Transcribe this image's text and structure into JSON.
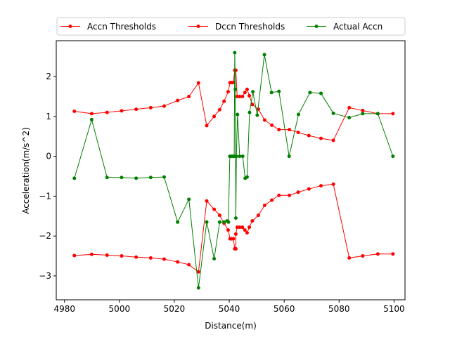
{
  "chart_data": {
    "type": "line",
    "xlabel": "Distance(m)",
    "ylabel": "Acceleration(m/s^2)",
    "xlim": [
      4977,
      5104
    ],
    "ylim": [
      -3.6,
      2.9
    ],
    "xticks": [
      4980,
      5000,
      5020,
      5040,
      5060,
      5080,
      5100
    ],
    "yticks": [
      -3,
      -2,
      -1,
      0,
      1,
      2
    ],
    "grid": false,
    "legend_position": "top",
    "series": [
      {
        "name": "Accn Thresholds",
        "color": "#ff0000",
        "points": [
          [
            4983.6,
            1.13
          ],
          [
            4989.9,
            1.07
          ],
          [
            4995.5,
            1.1
          ],
          [
            5000.8,
            1.14
          ],
          [
            5006.1,
            1.18
          ],
          [
            5011.4,
            1.22
          ],
          [
            5016.3,
            1.26
          ],
          [
            5021.2,
            1.4
          ],
          [
            5025.3,
            1.5
          ],
          [
            5028.8,
            1.84
          ],
          [
            5031.8,
            0.77
          ],
          [
            5034.5,
            1.0
          ],
          [
            5036.5,
            1.17
          ],
          [
            5038.1,
            1.38
          ],
          [
            5039.6,
            1.62
          ],
          [
            5040.3,
            1.85
          ],
          [
            5040.9,
            1.85
          ],
          [
            5041.5,
            1.85
          ],
          [
            5042.0,
            2.16
          ],
          [
            5042.4,
            2.16
          ],
          [
            5042.9,
            1.5
          ],
          [
            5043.8,
            1.5
          ],
          [
            5044.8,
            1.5
          ],
          [
            5045.7,
            1.6
          ],
          [
            5046.5,
            1.68
          ],
          [
            5047.3,
            1.52
          ],
          [
            5048.4,
            1.3
          ],
          [
            5050.6,
            1.18
          ],
          [
            5052.9,
            0.91
          ],
          [
            5055.5,
            0.78
          ],
          [
            5058.1,
            0.67
          ],
          [
            5061.9,
            0.67
          ],
          [
            5065.1,
            0.6
          ],
          [
            5069.0,
            0.52
          ],
          [
            5073.4,
            0.45
          ],
          [
            5077.9,
            0.4
          ],
          [
            5083.7,
            1.22
          ],
          [
            5088.6,
            1.15
          ],
          [
            5094.1,
            1.07
          ],
          [
            5099.6,
            1.07
          ]
        ]
      },
      {
        "name": "Dccn Thresholds",
        "color": "#ff0000",
        "points": [
          [
            4983.6,
            -2.49
          ],
          [
            4989.9,
            -2.46
          ],
          [
            4995.5,
            -2.48
          ],
          [
            5000.8,
            -2.5
          ],
          [
            5006.1,
            -2.53
          ],
          [
            5011.4,
            -2.55
          ],
          [
            5016.3,
            -2.58
          ],
          [
            5021.2,
            -2.65
          ],
          [
            5025.3,
            -2.72
          ],
          [
            5028.8,
            -2.9
          ],
          [
            5031.8,
            -1.12
          ],
          [
            5034.5,
            -1.33
          ],
          [
            5036.5,
            -1.48
          ],
          [
            5038.1,
            -1.68
          ],
          [
            5039.6,
            -1.85
          ],
          [
            5040.3,
            -2.07
          ],
          [
            5040.9,
            -2.07
          ],
          [
            5041.5,
            -2.07
          ],
          [
            5042.0,
            -2.32
          ],
          [
            5042.4,
            -2.32
          ],
          [
            5042.4,
            -1.95
          ],
          [
            5042.9,
            -1.78
          ],
          [
            5043.8,
            -1.78
          ],
          [
            5044.8,
            -1.78
          ],
          [
            5045.7,
            -1.85
          ],
          [
            5046.5,
            -1.92
          ],
          [
            5047.3,
            -1.78
          ],
          [
            5048.4,
            -1.62
          ],
          [
            5050.6,
            -1.48
          ],
          [
            5052.9,
            -1.23
          ],
          [
            5055.5,
            -1.1
          ],
          [
            5058.1,
            -0.98
          ],
          [
            5061.9,
            -0.98
          ],
          [
            5065.1,
            -0.9
          ],
          [
            5069.0,
            -0.82
          ],
          [
            5073.4,
            -0.74
          ],
          [
            5077.9,
            -0.7
          ],
          [
            5083.7,
            -2.55
          ],
          [
            5088.6,
            -2.5
          ],
          [
            5094.1,
            -2.45
          ],
          [
            5099.6,
            -2.45
          ]
        ]
      },
      {
        "name": "Actual Accn",
        "color": "#008000",
        "points": [
          [
            4983.6,
            -0.55
          ],
          [
            4989.9,
            0.92
          ],
          [
            4995.5,
            -0.53
          ],
          [
            5000.8,
            -0.53
          ],
          [
            5006.1,
            -0.55
          ],
          [
            5011.4,
            -0.53
          ],
          [
            5016.3,
            -0.52
          ],
          [
            5021.2,
            -1.65
          ],
          [
            5025.3,
            -1.08
          ],
          [
            5028.8,
            -3.3
          ],
          [
            5031.8,
            -1.65
          ],
          [
            5034.5,
            -2.57
          ],
          [
            5036.5,
            -1.65
          ],
          [
            5038.1,
            -1.65
          ],
          [
            5039.2,
            -1.62
          ],
          [
            5039.7,
            -1.65
          ],
          [
            5040.2,
            0.0
          ],
          [
            5040.8,
            0.0
          ],
          [
            5041.3,
            0.0
          ],
          [
            5041.8,
            0.0
          ],
          [
            5042.0,
            2.6
          ],
          [
            5042.2,
            1.68
          ],
          [
            5042.4,
            -1.55
          ],
          [
            5042.6,
            0.0
          ],
          [
            5043.0,
            1.05
          ],
          [
            5043.8,
            0.0
          ],
          [
            5044.9,
            0.0
          ],
          [
            5045.8,
            -0.55
          ],
          [
            5046.5,
            -0.52
          ],
          [
            5047.4,
            1.1
          ],
          [
            5048.6,
            1.62
          ],
          [
            5050.2,
            1.03
          ],
          [
            5052.8,
            2.55
          ],
          [
            5055.4,
            1.6
          ],
          [
            5058.1,
            1.63
          ],
          [
            5061.8,
            0.0
          ],
          [
            5065.2,
            1.05
          ],
          [
            5069.4,
            1.6
          ],
          [
            5073.4,
            1.58
          ],
          [
            5077.9,
            1.08
          ],
          [
            5083.7,
            0.97
          ],
          [
            5088.6,
            1.07
          ],
          [
            5094.1,
            1.07
          ],
          [
            5099.6,
            0.0
          ]
        ]
      }
    ]
  }
}
